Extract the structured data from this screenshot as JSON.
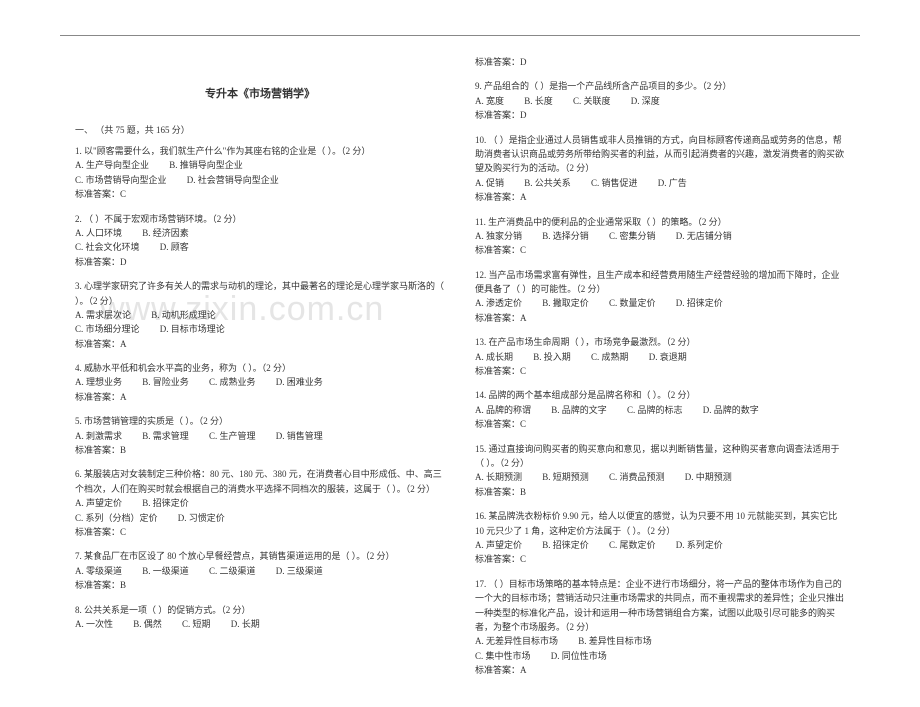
{
  "document": {
    "title": "专升本《市场营销学》",
    "section_heading": "一、 （共 75 题，共 165 分）",
    "watermark": "www.zixin.com.cn",
    "questions": [
      {
        "stem": "1. 以\"顾客需要什么，我们就生产什么\"作为其座右铭的企业是（ ）。（2 分）",
        "options": [
          "A. 生产导向型企业",
          "B. 推销导向型企业",
          "C. 市场营销导向型企业",
          "D. 社会营销导向型企业"
        ],
        "answer": "标准答案：C"
      },
      {
        "stem": "2. （ ）不属于宏观市场营销环境。（2 分）",
        "options": [
          "A. 人口环境",
          "B. 经济因素",
          "C. 社会文化环境",
          "D. 顾客"
        ],
        "answer": "标准答案：D"
      },
      {
        "stem": "3. 心理学家研究了许多有关人的需求与动机的理论，其中最著名的理论是心理学家马斯洛的（ ）。（2 分）",
        "options": [
          "A. 需求层次论",
          "B. 动机形成理论",
          "C. 市场细分理论",
          "D. 目标市场理论"
        ],
        "answer": "标准答案：A"
      },
      {
        "stem": "4. 威胁水平低和机会水平高的业务，称为（ ）。（2 分）",
        "options": [
          "A. 理想业务",
          "B. 冒险业务",
          "C. 成熟业务",
          "D. 困难业务"
        ],
        "answer": "标准答案：A"
      },
      {
        "stem": "5. 市场营销管理的实质是（ ）。（2 分）",
        "options": [
          "A. 刺激需求",
          "B. 需求管理",
          "C. 生产管理",
          "D. 销售管理"
        ],
        "answer": "标准答案：B"
      },
      {
        "stem": "6. 某服装店对女装制定三种价格：80 元、180 元、380 元，在消费者心目中形成低、中、高三个档次，人们在购买时就会根据自己的消费水平选择不同档次的服装，这属于（ ）。（2 分）",
        "options": [
          "A. 声望定价",
          "B. 招徕定价",
          "C. 系列（分档）定价",
          "D. 习惯定价"
        ],
        "answer": "标准答案：C"
      },
      {
        "stem": "7. 某食品厂在市区设了 80 个放心早餐经营点，其销售渠道运用的是（ ）。（2 分）",
        "options": [
          "A. 零级渠道",
          "B. 一级渠道",
          "C. 二级渠道",
          "D. 三级渠道"
        ],
        "answer": "标准答案：B"
      },
      {
        "stem": "8. 公共关系是一项（ ）的促销方式。（2 分）",
        "options": [
          "A. 一次性",
          "B. 偶然",
          "C. 短期",
          "D. 长期"
        ],
        "answer": "标准答案：D"
      },
      {
        "stem": "9. 产品组合的（ ）是指一个产品线所含产品项目的多少。（2 分）",
        "options": [
          "A. 宽度",
          "B. 长度",
          "C. 关联度",
          "D. 深度"
        ],
        "answer": "标准答案：D"
      },
      {
        "stem": "10. （ ）是指企业通过人员销售或非人员推销的方式，向目标顾客传递商品或劳务的信息，帮助消费者认识商品或劳务所带给购买者的利益，从而引起消费者的兴趣，激发消费者的购买欲望及购买行为的活动。（2 分）",
        "options": [
          "A. 促销",
          "B. 公共关系",
          "C. 销售促进",
          "D. 广告"
        ],
        "answer": "标准答案：A"
      },
      {
        "stem": "11. 生产消费品中的便利品的企业通常采取（ ）的策略。（2 分）",
        "options": [
          "A. 独家分销",
          "B. 选择分销",
          "C. 密集分销",
          "D. 无店铺分销"
        ],
        "answer": "标准答案：C"
      },
      {
        "stem": "12. 当产品市场需求富有弹性，且生产成本和经营费用随生产经营经验的增加而下降时，企业便具备了（ ）的可能性。（2 分）",
        "options": [
          "A. 渗透定价",
          "B. 撇取定价",
          "C. 数量定价",
          "D. 招徕定价"
        ],
        "answer": "标准答案：A"
      },
      {
        "stem": "13. 在产品市场生命周期（ ），市场竞争最激烈。（2 分）",
        "options": [
          "A. 成长期",
          "B. 投入期",
          "C. 成熟期",
          "D. 衰退期"
        ],
        "answer": "标准答案：C"
      },
      {
        "stem": "14. 品牌的两个基本组成部分是品牌名称和（ ）。（2 分）",
        "options": [
          "A. 品牌的称谓",
          "B. 品牌的文字",
          "C. 品牌的标志",
          "D. 品牌的数字"
        ],
        "answer": "标准答案：C"
      },
      {
        "stem": "15. 通过直接询问购买者的购买意向和意见，据以判断销售量，这种购买者意向调查法适用于（ ）。（2 分）",
        "options": [
          "A. 长期预测",
          "B. 短期预测",
          "C. 消费品预测",
          "D. 中期预测"
        ],
        "answer": "标准答案：B"
      },
      {
        "stem": "16. 某品牌洗衣粉标价 9.90 元，给人以便宜的感觉，认为只要不用 10 元就能买到，其实它比 10 元只少了 1 角，这种定价方法属于（ ）。（2 分）",
        "options": [
          "A. 声望定价",
          "B. 招徕定价",
          "C. 尾数定价",
          "D. 系列定价"
        ],
        "answer": "标准答案：C"
      },
      {
        "stem": "17. （ ）目标市场策略的基本特点是：企业不进行市场细分，将一产品的整体市场作为自己的一个大的目标市场；营销活动只注重市场需求的共同点，而不重视需求的差异性；企业只推出一种类型的标准化产品，设计和运用一种市场营销组合方案，试图以此吸引尽可能多的购买者，为整个市场服务。（2 分）",
        "options": [
          "A. 无差异性目标市场",
          "B. 差异性目标市场",
          "C. 集中性市场",
          "D. 同位性市场"
        ],
        "answer": "标准答案：A"
      }
    ]
  }
}
